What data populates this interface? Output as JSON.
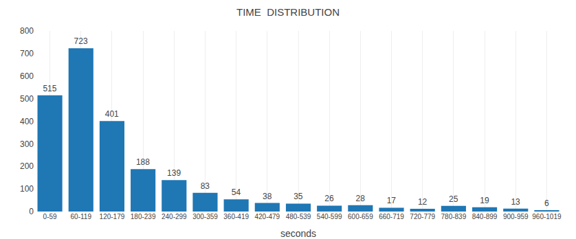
{
  "chart_data": {
    "type": "bar",
    "title": "TIME  DISTRIBUTION",
    "xlabel": "seconds",
    "categories": [
      "0-59",
      "60-119",
      "120-179",
      "180-239",
      "240-299",
      "300-359",
      "360-419",
      "420-479",
      "480-539",
      "540-599",
      "600-659",
      "660-719",
      "720-779",
      "780-839",
      "840-899",
      "900-959",
      "960-1019"
    ],
    "values": [
      515,
      723,
      401,
      188,
      139,
      83,
      54,
      38,
      35,
      26,
      28,
      17,
      12,
      25,
      19,
      13,
      6
    ],
    "ylim": [
      0,
      800
    ],
    "yticks": [
      0,
      100,
      200,
      300,
      400,
      500,
      600,
      700,
      800
    ],
    "grid": true,
    "data_labels": true
  }
}
